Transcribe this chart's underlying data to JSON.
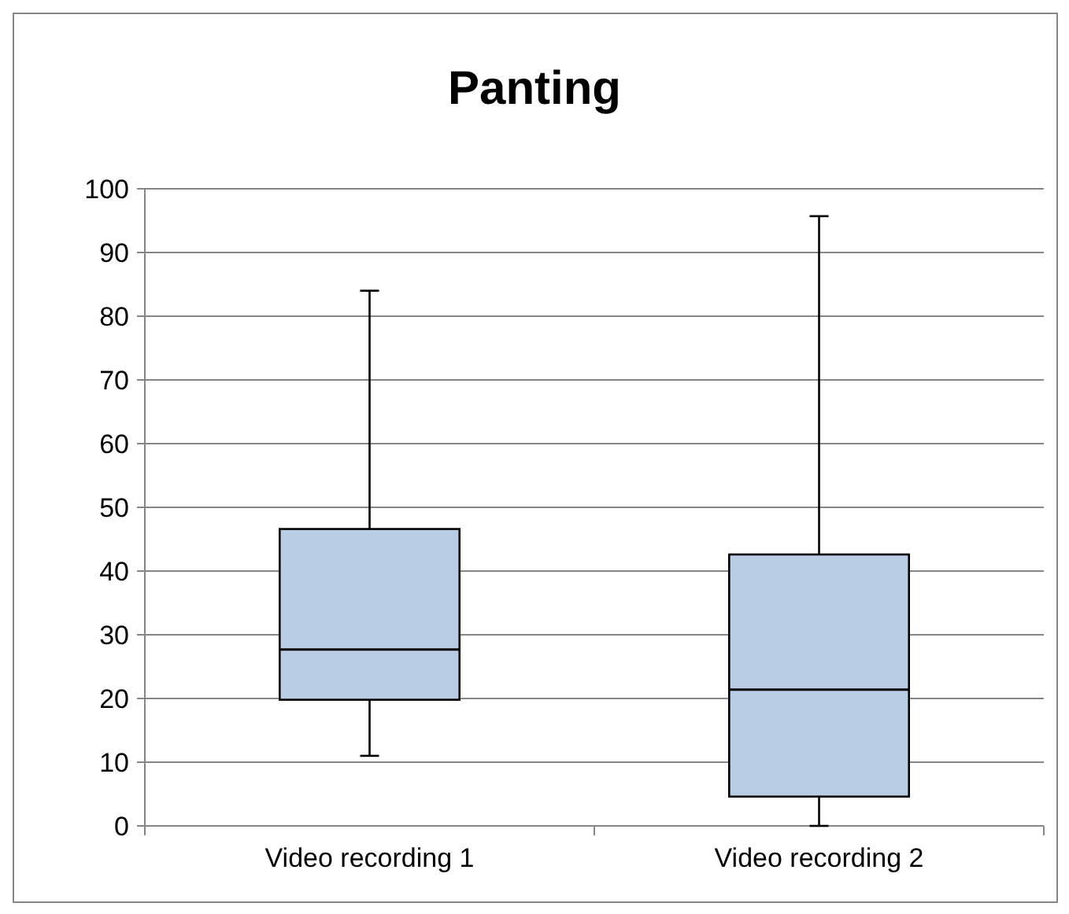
{
  "chart_data": {
    "type": "box",
    "title": "Panting",
    "categories": [
      "Video recording 1",
      "Video recording 2"
    ],
    "boxes": [
      {
        "low": 11,
        "q1": 19.8,
        "median": 27.7,
        "q3": 46.6,
        "high": 84
      },
      {
        "low": 0,
        "q1": 4.6,
        "median": 21.4,
        "q3": 42.6,
        "high": 95.7
      }
    ],
    "color": "#b9cde5",
    "ylim": [
      0,
      100
    ],
    "yticks": [
      0,
      10,
      20,
      30,
      40,
      50,
      60,
      70,
      80,
      90,
      100
    ],
    "grid": "y"
  }
}
